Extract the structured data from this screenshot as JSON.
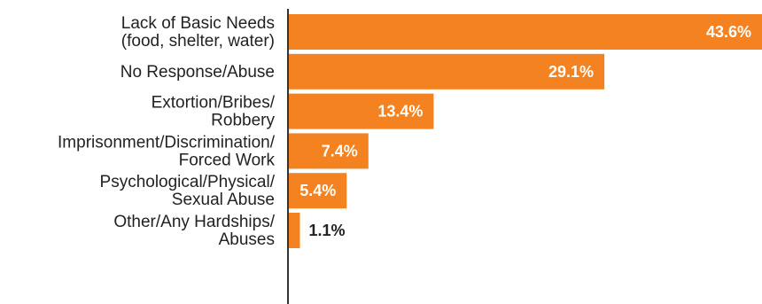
{
  "chart_data": {
    "type": "bar",
    "orientation": "horizontal",
    "title": "",
    "xlabel": "",
    "ylabel": "",
    "unit": "%",
    "categories": [
      [
        "Lack of Basic Needs",
        "(food, shelter, water)"
      ],
      [
        "No Response/Abuse"
      ],
      [
        "Extortion/Bribes/",
        "Robbery"
      ],
      [
        "Imprisonment/Discrimination/",
        "Forced Work"
      ],
      [
        "Psychological/Physical/",
        "Sexual Abuse"
      ],
      [
        "Other/Any Hardships/",
        "Abuses"
      ]
    ],
    "values": [
      43.6,
      29.1,
      13.4,
      7.4,
      5.4,
      1.1
    ],
    "value_labels": [
      "43.6%",
      "29.1%",
      "13.4%",
      "7.4%",
      "5.4%",
      "1.1%"
    ],
    "xlim": [
      0,
      43.6
    ],
    "grid": false,
    "legend": "none",
    "colors": {
      "bar": "#F58220",
      "label_inside": "#ffffff",
      "label_outside": "#222222",
      "axis": "#333333"
    }
  }
}
